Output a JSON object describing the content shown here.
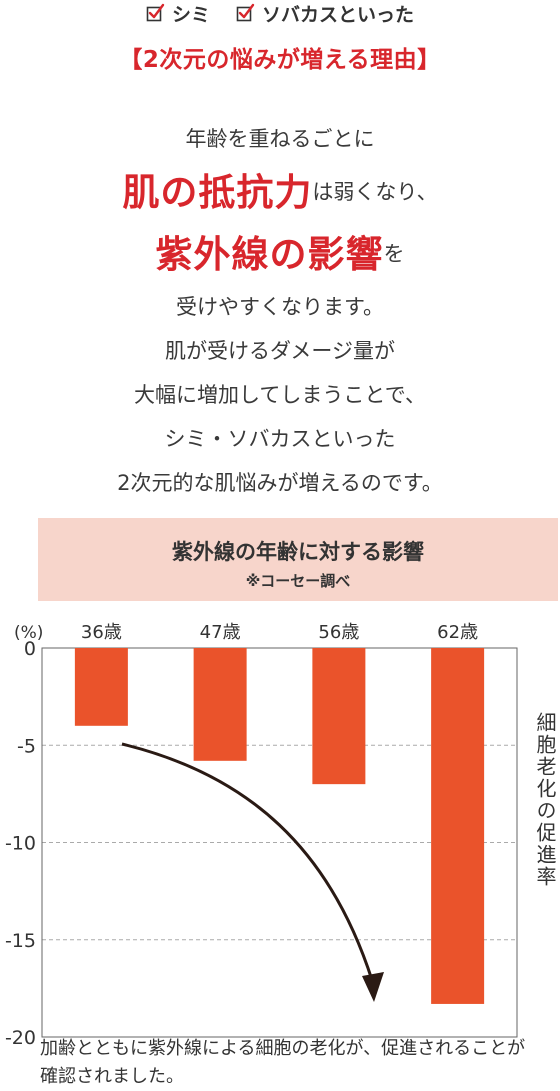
{
  "checklist": [
    "シミ",
    "ソバカスといった"
  ],
  "heading": "【2次元の悩みが増える理由】",
  "body": {
    "line1": "年齢を重ねるごとに",
    "emph1": "肌の抵抗力",
    "line2_rest": "は弱くなり、",
    "emph2": "紫外線の影響",
    "line3_rest": "を",
    "line4": "受けやすくなります。",
    "line5": "肌が受けるダメージ量が",
    "line6": "大幅に増加してしまうことで、",
    "line7": "シミ・ソバカスといった",
    "line8": "2次元的な肌悩みが増えるのです。"
  },
  "chart_title": "紫外線の年齢に対する影響",
  "chart_subtitle": "※コーセー調べ",
  "chart_data": {
    "type": "bar",
    "categories": [
      "36歳",
      "47歳",
      "56歳",
      "62歳"
    ],
    "values": [
      -4.0,
      -5.8,
      -7.0,
      -18.3
    ],
    "ylabel": "細胞老化の促進率",
    "yunit": "(%)",
    "ylim": [
      -20,
      0
    ],
    "yticks": [
      0,
      -5,
      -10,
      -15,
      -20
    ],
    "grid": true,
    "bar_color": "#ea532b"
  },
  "caption": "加齢とともに紫外線による細胞の老化が、促進されることが確認されました。",
  "colors": {
    "accent": "#d8262c",
    "bar": "#ea532b",
    "title_bg": "#f7d5cb"
  }
}
